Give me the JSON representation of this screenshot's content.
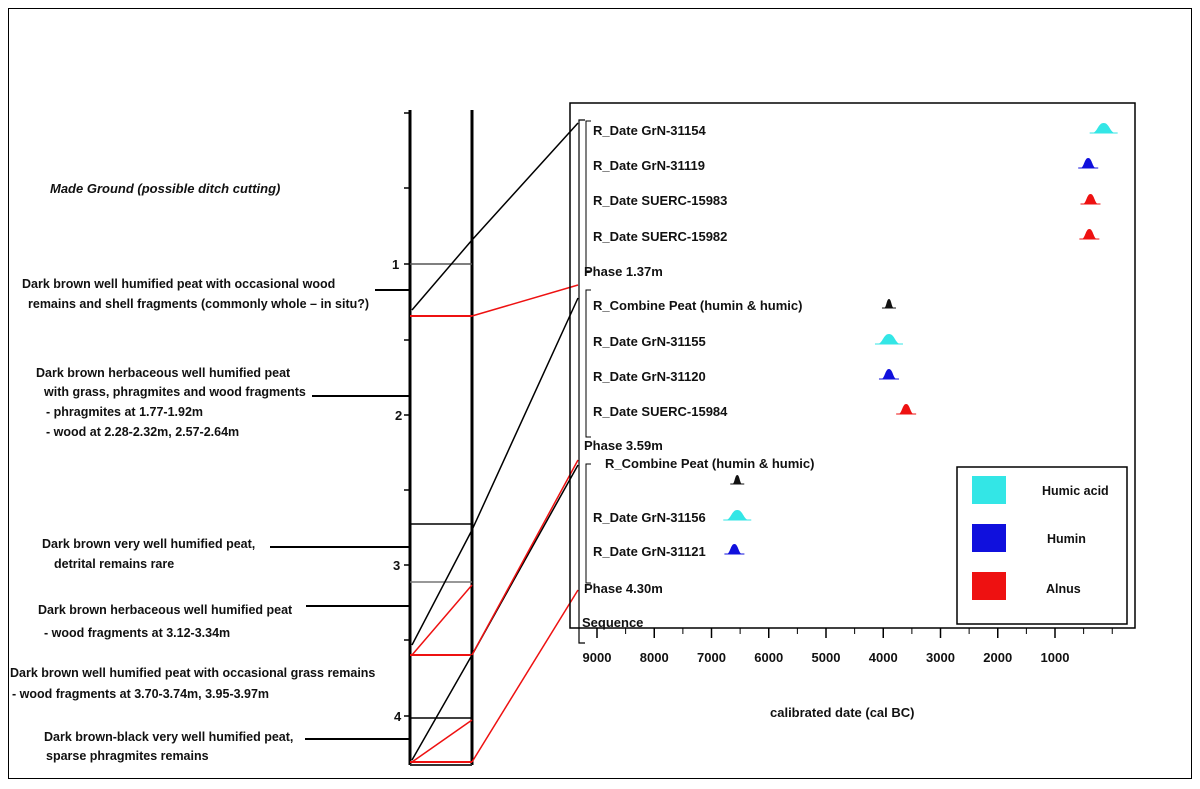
{
  "section_title": "Made Ground (possible ditch cutting)",
  "descriptions": [
    {
      "id": "d1",
      "lines": [
        "Dark brown well humified peat with occasional wood",
        "remains and shell fragments (commonly whole – in situ?)"
      ]
    },
    {
      "id": "d2",
      "lines": [
        "Dark brown herbaceous well humified peat",
        "with grass, phragmites and wood fragments",
        "- phragmites at 1.77-1.92m",
        "- wood at 2.28-2.32m, 2.57-2.64m"
      ]
    },
    {
      "id": "d3",
      "lines": [
        "Dark brown very well humified peat,",
        "detrital remains rare"
      ]
    },
    {
      "id": "d4",
      "lines": [
        "Dark brown herbaceous well humified peat",
        "- wood fragments at 3.12-3.34m"
      ]
    },
    {
      "id": "d5",
      "lines": [
        "Dark brown well humified peat with occasional grass remains",
        "- wood fragments at 3.70-3.74m, 3.95-3.97m"
      ]
    },
    {
      "id": "d6",
      "lines": [
        "Dark brown-black very well humified peat,",
        "sparse phragmites remains"
      ]
    }
  ],
  "depth_labels": [
    "1",
    "2",
    "3",
    "4"
  ],
  "entries": [
    {
      "label": "R_Date GrN-31154",
      "kind": "humic",
      "age": 150
    },
    {
      "label": "R_Date GrN-31119",
      "kind": "humin",
      "age": 420
    },
    {
      "label": "R_Date SUERC-15983",
      "kind": "alnus",
      "age": 380
    },
    {
      "label": "R_Date SUERC-15982",
      "kind": "alnus",
      "age": 400
    },
    {
      "label": "Phase 1.37m",
      "kind": "phase"
    },
    {
      "label": "R_Combine Peat (humin & humic)",
      "kind": "combine",
      "age": 3900
    },
    {
      "label": "R_Date GrN-31155",
      "kind": "humic",
      "age": 3900
    },
    {
      "label": "R_Date GrN-31120",
      "kind": "humin",
      "age": 3900
    },
    {
      "label": "R_Date SUERC-15984",
      "kind": "alnus",
      "age": 3600
    },
    {
      "label": "Phase 3.59m",
      "kind": "phase"
    },
    {
      "label": "R_Combine Peat (humin & humic)",
      "kind": "combine",
      "age": 6550
    },
    {
      "label": "R_Date GrN-31156",
      "kind": "humic",
      "age": 6550
    },
    {
      "label": "R_Date GrN-31121",
      "kind": "humin",
      "age": 6600
    },
    {
      "label": "Phase 4.30m",
      "kind": "phase"
    },
    {
      "label": "Sequence",
      "kind": "sequence"
    }
  ],
  "axis": {
    "ticks": [
      "9000",
      "8000",
      "7000",
      "6000",
      "5000",
      "4000",
      "3000",
      "2000",
      "1000"
    ],
    "title": "calibrated date (cal BC)"
  },
  "legend": [
    {
      "label": "Humic acid",
      "color": "#33e6e6"
    },
    {
      "label": "Humin",
      "color": "#1010dd"
    },
    {
      "label": "Alnus",
      "color": "#ee1111"
    }
  ],
  "colors": {
    "humic": "#33e6e6",
    "humin": "#1010dd",
    "alnus": "#ee1111",
    "combine": "#111111",
    "link_black": "#000000",
    "link_red": "#ee1111"
  }
}
